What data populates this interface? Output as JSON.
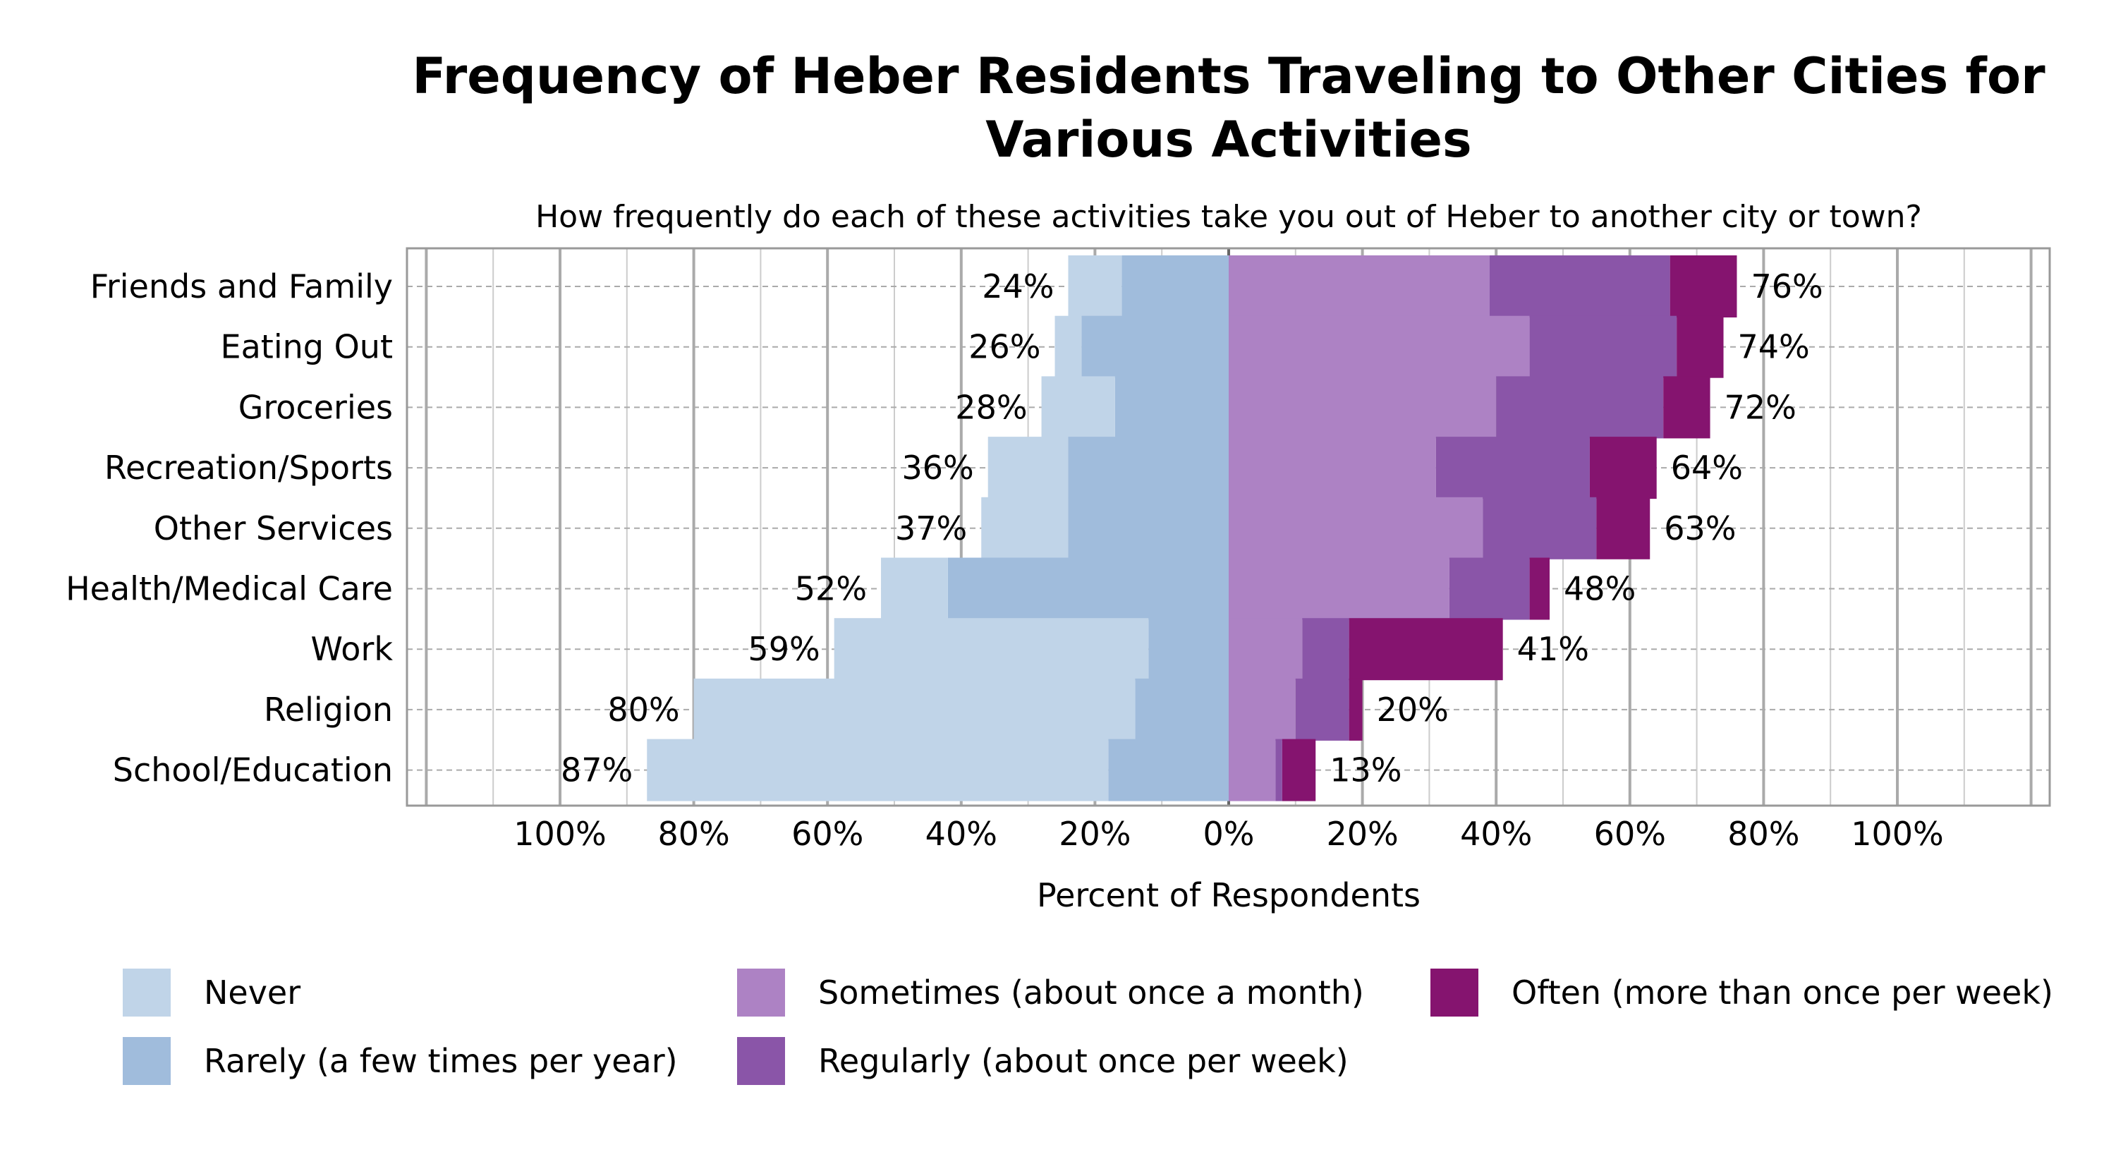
{
  "chart_data": {
    "type": "bar",
    "subtype": "diverging-stacked-horizontal",
    "title": "Frequency of Heber Residents Traveling to Other Cities for Various Activities",
    "subtitle": "How frequently do each of these activities take you out of Heber to another city or town?",
    "xlabel": "Percent of Respondents",
    "xlim": [
      -100,
      100
    ],
    "xticks": [
      "100%",
      "80%",
      "60%",
      "40%",
      "20%",
      "0%",
      "20%",
      "40%",
      "60%",
      "80%",
      "100%"
    ],
    "grid": true,
    "legend_position": "bottom",
    "categories": [
      "Friends and Family",
      "Eating Out",
      "Groceries",
      "Recreation/Sports",
      "Other Services",
      "Health/Medical Care",
      "Work",
      "Religion",
      "School/Education"
    ],
    "series": [
      {
        "name": "Never",
        "side": "left",
        "color": "#c0d4e8",
        "values": [
          8,
          4,
          11,
          12,
          13,
          10,
          47,
          66,
          69
        ]
      },
      {
        "name": "Rarely (a few times per year)",
        "side": "left",
        "color": "#a0bcdc",
        "values": [
          16,
          22,
          17,
          24,
          24,
          42,
          12,
          14,
          18
        ]
      },
      {
        "name": "Sometimes (about once a month)",
        "side": "right",
        "color": "#ad82c4",
        "values": [
          39,
          45,
          40,
          31,
          38,
          33,
          11,
          10,
          7
        ]
      },
      {
        "name": "Regularly (about once per week)",
        "side": "right",
        "color": "#8a55a8",
        "values": [
          27,
          22,
          25,
          23,
          17,
          12,
          7,
          8,
          1
        ]
      },
      {
        "name": "Often (more than once per week)",
        "side": "right",
        "color": "#85146f",
        "values": [
          10,
          7,
          7,
          10,
          8,
          3,
          23,
          2,
          5
        ]
      }
    ],
    "left_totals": [
      "24%",
      "26%",
      "28%",
      "36%",
      "37%",
      "52%",
      "59%",
      "80%",
      "87%"
    ],
    "right_totals": [
      "76%",
      "74%",
      "72%",
      "64%",
      "63%",
      "48%",
      "41%",
      "20%",
      "13%"
    ]
  }
}
